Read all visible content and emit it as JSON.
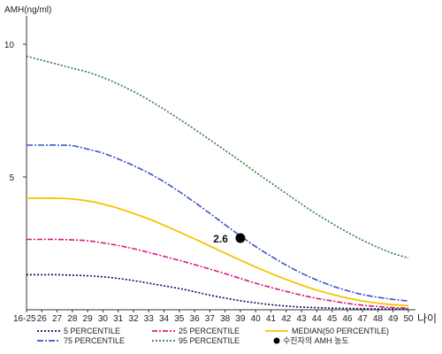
{
  "chart_data": {
    "type": "line",
    "ylabel": "AMH(ng/ml)",
    "xlabel": "나이",
    "ylim": [
      0,
      10
    ],
    "yticks": [
      5,
      10
    ],
    "categories": [
      "16-25",
      "26",
      "27",
      "28",
      "29",
      "30",
      "31",
      "32",
      "33",
      "34",
      "35",
      "36",
      "37",
      "38",
      "39",
      "40",
      "41",
      "42",
      "43",
      "44",
      "45",
      "46",
      "47",
      "48",
      "49",
      "50"
    ],
    "series": [
      {
        "name": "5 PERCENTILE",
        "color": "#0a0a5a",
        "dash": "2,2",
        "values": [
          1.32,
          1.32,
          1.32,
          1.3,
          1.28,
          1.24,
          1.18,
          1.1,
          1.0,
          0.9,
          0.8,
          0.68,
          0.55,
          0.44,
          0.34,
          0.26,
          0.19,
          0.14,
          0.1,
          0.08,
          0.06,
          0.05,
          0.04,
          0.03,
          0.03,
          0.02
        ]
      },
      {
        "name": "25 PERCENTILE",
        "color": "#e0167f",
        "dash": "6,2,2,2",
        "values": [
          2.65,
          2.65,
          2.65,
          2.63,
          2.6,
          2.52,
          2.42,
          2.3,
          2.16,
          2.01,
          1.86,
          1.7,
          1.53,
          1.36,
          1.18,
          1.0,
          0.84,
          0.69,
          0.55,
          0.43,
          0.33,
          0.24,
          0.17,
          0.12,
          0.08,
          0.06
        ]
      },
      {
        "name": "MEDIAN(50 PERCENTILE)",
        "color": "#f5c400",
        "dash": "",
        "values": [
          4.2,
          4.2,
          4.2,
          4.17,
          4.1,
          3.98,
          3.82,
          3.63,
          3.42,
          3.18,
          2.93,
          2.67,
          2.4,
          2.13,
          1.87,
          1.61,
          1.37,
          1.14,
          0.93,
          0.74,
          0.58,
          0.44,
          0.33,
          0.25,
          0.19,
          0.15
        ]
      },
      {
        "name": "75 PERCENTILE",
        "color": "#3a55c8",
        "dash": "7,2,2,2",
        "values": [
          6.2,
          6.2,
          6.2,
          6.18,
          6.05,
          5.9,
          5.68,
          5.43,
          5.15,
          4.82,
          4.45,
          4.05,
          3.63,
          3.2,
          2.78,
          2.38,
          2.02,
          1.68,
          1.38,
          1.12,
          0.9,
          0.72,
          0.57,
          0.47,
          0.39,
          0.33
        ]
      },
      {
        "name": "95 PERCENTILE",
        "color": "#2e7d3a",
        "dash": "2,2",
        "values": [
          9.55,
          9.4,
          9.25,
          9.1,
          8.95,
          8.75,
          8.5,
          8.22,
          7.9,
          7.55,
          7.18,
          6.8,
          6.4,
          6.0,
          5.6,
          5.18,
          4.78,
          4.38,
          3.98,
          3.6,
          3.25,
          2.92,
          2.62,
          2.35,
          2.12,
          1.95
        ]
      }
    ],
    "annotation": {
      "label": "2.6",
      "x": "39",
      "y": 2.7,
      "legend_label": "수진자의 AMH 농도"
    },
    "legend_position": "bottom"
  }
}
